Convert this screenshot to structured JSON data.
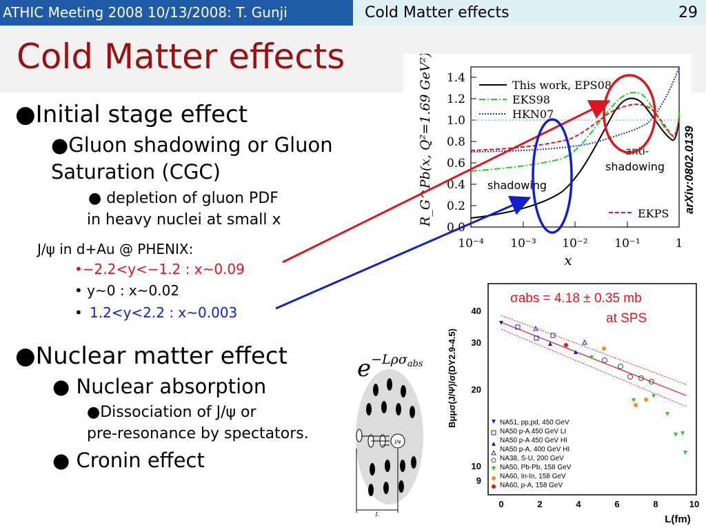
{
  "header": {
    "left_text": "ATHIC Meeting 2008 10/13/2008: T. Gunji",
    "right_title": "Cold Matter effects",
    "page_number": "29"
  },
  "slide": {
    "title": "Cold Matter effects",
    "bullets": {
      "initial_stage": "●Initial stage effect",
      "gluon_line1": "●Gluon shadowing or Gluon",
      "gluon_line2": "Saturation (CGC)",
      "depletion_line1": "● depletion of gluon PDF",
      "depletion_line2": "in heavy nuclei at small x",
      "jpsi_header": "J/ψ in d+Au @ PHENIX:",
      "rap1": "•−2.2<y<−1.2 : x~0.09",
      "rap2": "• y~0 : x~0.02",
      "rap3_bullet": "•",
      "rap3": "1.2<y<2.2 : x~0.003",
      "nuclear_matter": "●Nuclear matter effect",
      "nuclear_absorption": "● Nuclear absorption",
      "dissociation_line1": "●Dissociation of J/ψ or",
      "dissociation_line2": "pre-resonance by spectators.",
      "cronin": "●  Cronin effect"
    },
    "formula": {
      "base": "e",
      "exponent": "−Lρσ",
      "subscript": "abs"
    },
    "colors": {
      "header_blue": "#1f5aa6",
      "header_light": "#dff1f7",
      "title_red": "#991111",
      "highlight_red": "#e0141c",
      "highlight_blue": "#1020c8"
    }
  },
  "plot_top": {
    "annotation": "arXiv:0802.0139",
    "ylabel": "R_G^Pb(x, Q²=1.69 GeV²)",
    "xlabel": "x",
    "y_ticks": [
      "0.0",
      "0.2",
      "0.4",
      "0.6",
      "0.8",
      "1.0",
      "1.2",
      "1.4"
    ],
    "x_ticks": [
      "10⁻⁴",
      "10⁻³",
      "10⁻²",
      "10⁻¹",
      "1"
    ],
    "legend": [
      "This work, EPS08",
      "EKS98",
      "HKN07"
    ],
    "legend2": "EKPS",
    "shadowing_label": "shadowing",
    "antishadowing_line1": "anti-",
    "antishadowing_line2": "shadowing"
  },
  "plot_bottom": {
    "sigma_line1": "σabs = 4.18 ± 0.35 mb",
    "sigma_line2": "at SPS",
    "ylabel": "Bμμσ(J/Ψ)/σ(DY2.9-4.5)",
    "xlabel": "L(fm)",
    "y_ticks": [
      "40",
      "30",
      "20",
      "10",
      "9"
    ],
    "x_ticks": [
      "0",
      "2",
      "4",
      "6",
      "8",
      "10"
    ],
    "legend": [
      "NA51, pp,pd, 450 GeV",
      "NA50 p-A 450 GeV LI",
      "NA50 p-A 450 GeV HI",
      "NA50 p-A, 400 GeV HI",
      "NA38, S-U, 200 GeV",
      "NA50, Pb-Pb, 158 GeV",
      "NA60, In-In, 158 GeV",
      "NA60, p-A, 158 GeV"
    ]
  },
  "nucleus_diagram": {
    "jpsi_label": "J/ψ",
    "length_label": "L"
  }
}
